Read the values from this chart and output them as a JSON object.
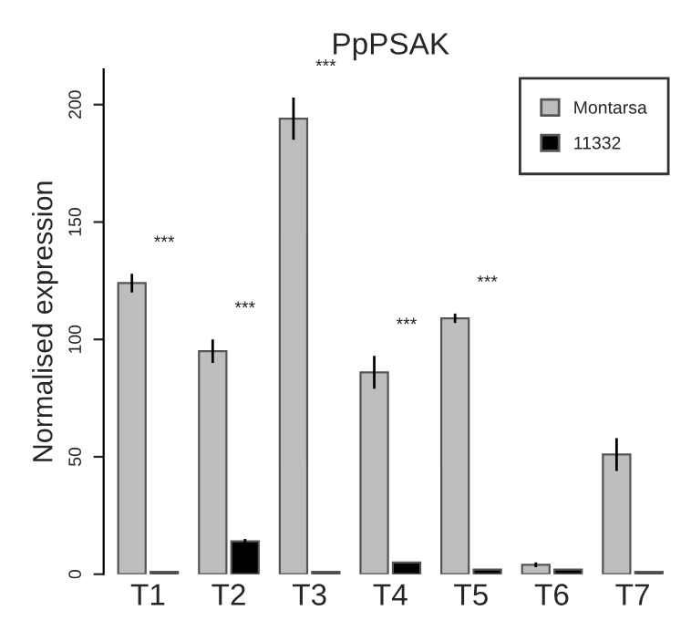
{
  "chart_data": {
    "type": "bar",
    "title": "PpPSAK",
    "ylabel": "Normalised expression",
    "categories": [
      "T1",
      "T2",
      "T3",
      "T4",
      "T5",
      "T6",
      "T7"
    ],
    "series": [
      {
        "name": "Montarsa",
        "color": "#bebebe",
        "values": [
          124,
          95,
          194,
          86,
          109,
          4,
          51
        ],
        "errors": [
          4,
          5,
          9,
          7,
          2,
          1,
          7
        ]
      },
      {
        "name": "11332",
        "color": "#000000",
        "values": [
          1,
          14,
          1,
          5,
          2,
          2,
          1
        ],
        "errors": [
          null,
          1,
          null,
          null,
          null,
          null,
          null
        ]
      }
    ],
    "ylim": [
      0,
      215
    ],
    "yticks": [
      0,
      50,
      100,
      150,
      200
    ],
    "legend": "top right",
    "grid": false,
    "annotations": [
      "***",
      "***",
      "***",
      "***",
      "***"
    ]
  }
}
